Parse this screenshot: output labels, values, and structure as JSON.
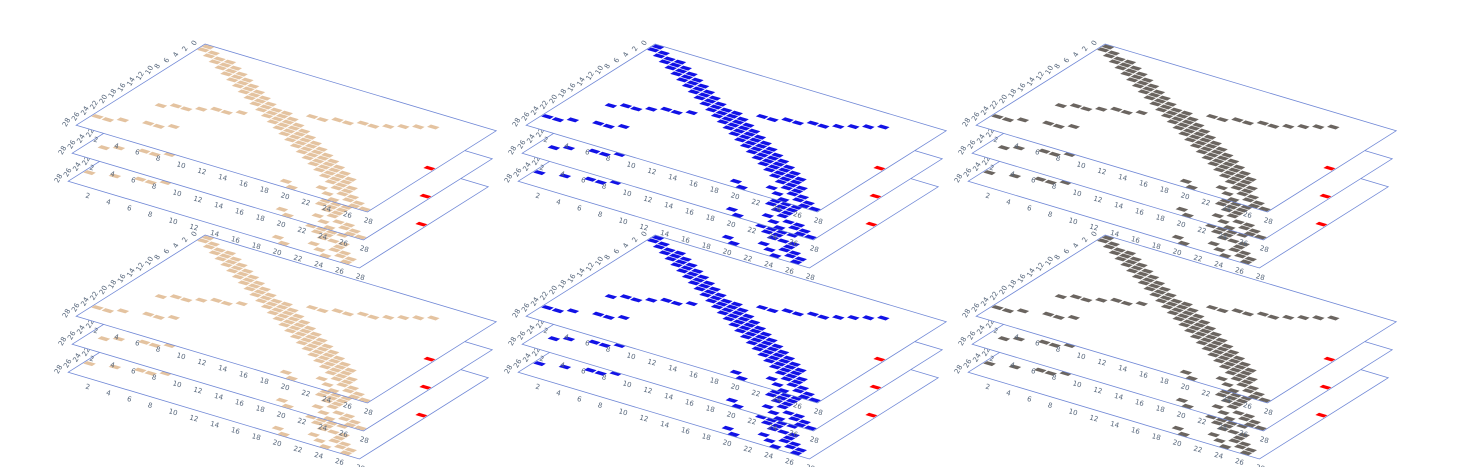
{
  "chart_data": {
    "type": "heatmap",
    "description_of_view": "six stacked 3D binary matrix panels (3 layers each), 28x28 grid",
    "x_ticks": [
      "2",
      "4",
      "6",
      "8",
      "10",
      "12",
      "14",
      "16",
      "18",
      "20",
      "22",
      "24",
      "26",
      "28"
    ],
    "y_ticks": [
      "0",
      "2",
      "4",
      "6",
      "8",
      "10",
      "12",
      "14",
      "16",
      "18",
      "20",
      "22",
      "24",
      "26",
      "28"
    ],
    "grid_size": 28,
    "marker_color": "#ff0000",
    "panels": [
      {
        "id": "p1",
        "color": "#e4c3a0",
        "layers": 3
      },
      {
        "id": "p2",
        "color": "#1212e6",
        "layers": 3
      },
      {
        "id": "p3",
        "color": "#6b6560",
        "layers": 3
      },
      {
        "id": "p4",
        "color": "#e4c3a0",
        "layers": 3
      },
      {
        "id": "p5",
        "color": "#1212e6",
        "layers": 3
      },
      {
        "id": "p6",
        "color": "#6b6560",
        "layers": 3
      }
    ],
    "cells": [
      [
        0,
        0
      ],
      [
        1,
        0
      ],
      [
        1,
        1
      ],
      [
        2,
        1
      ],
      [
        2,
        2
      ],
      [
        3,
        2
      ],
      [
        3,
        3
      ],
      [
        4,
        3
      ],
      [
        4,
        4
      ],
      [
        5,
        4
      ],
      [
        5,
        5
      ],
      [
        6,
        5
      ],
      [
        6,
        6
      ],
      [
        7,
        6
      ],
      [
        7,
        7
      ],
      [
        8,
        7
      ],
      [
        8,
        8
      ],
      [
        9,
        8
      ],
      [
        9,
        9
      ],
      [
        10,
        9
      ],
      [
        10,
        10
      ],
      [
        11,
        10
      ],
      [
        11,
        11
      ],
      [
        12,
        11
      ],
      [
        12,
        12
      ],
      [
        13,
        12
      ],
      [
        13,
        13
      ],
      [
        14,
        13
      ],
      [
        14,
        14
      ],
      [
        15,
        14
      ],
      [
        15,
        15
      ],
      [
        16,
        15
      ],
      [
        16,
        16
      ],
      [
        17,
        16
      ],
      [
        17,
        17
      ],
      [
        18,
        17
      ],
      [
        18,
        18
      ],
      [
        19,
        18
      ],
      [
        19,
        19
      ],
      [
        20,
        19
      ],
      [
        20,
        20
      ],
      [
        21,
        20
      ],
      [
        21,
        21
      ],
      [
        22,
        21
      ],
      [
        22,
        22
      ],
      [
        23,
        22
      ],
      [
        23,
        23
      ],
      [
        24,
        23
      ],
      [
        24,
        24
      ],
      [
        25,
        24
      ],
      [
        25,
        25
      ],
      [
        26,
        25
      ],
      [
        26,
        26
      ],
      [
        27,
        26
      ],
      [
        27,
        27
      ],
      [
        2,
        3
      ],
      [
        3,
        4
      ],
      [
        4,
        5
      ],
      [
        5,
        6
      ],
      [
        6,
        7
      ],
      [
        7,
        8
      ],
      [
        8,
        9
      ],
      [
        9,
        10
      ],
      [
        10,
        11
      ],
      [
        11,
        12
      ],
      [
        12,
        13
      ],
      [
        13,
        14
      ],
      [
        14,
        15
      ],
      [
        15,
        16
      ],
      [
        16,
        17
      ],
      [
        17,
        18
      ],
      [
        18,
        19
      ],
      [
        19,
        20
      ],
      [
        20,
        21
      ],
      [
        21,
        22
      ],
      [
        22,
        23
      ],
      [
        23,
        24
      ],
      [
        10,
        12
      ],
      [
        11,
        13
      ],
      [
        12,
        14
      ],
      [
        13,
        15
      ],
      [
        14,
        16
      ],
      [
        15,
        17
      ],
      [
        16,
        18
      ],
      [
        17,
        19
      ],
      [
        18,
        20
      ],
      [
        19,
        21
      ],
      [
        20,
        22
      ],
      [
        21,
        23
      ],
      [
        9,
        14
      ],
      [
        9,
        15
      ],
      [
        8,
        16
      ],
      [
        8,
        17
      ],
      [
        7,
        18
      ],
      [
        7,
        19
      ],
      [
        6,
        20
      ],
      [
        5,
        21
      ],
      [
        4,
        22
      ],
      [
        3,
        23
      ],
      [
        14,
        7
      ],
      [
        14,
        8
      ],
      [
        13,
        9
      ],
      [
        15,
        6
      ],
      [
        16,
        5
      ],
      [
        16,
        4
      ],
      [
        17,
        3
      ],
      [
        22,
        4
      ],
      [
        22,
        5
      ],
      [
        21,
        6
      ],
      [
        23,
        2
      ],
      [
        24,
        1
      ],
      [
        24,
        0
      ],
      [
        26,
        19
      ],
      [
        27,
        20
      ],
      [
        25,
        22
      ],
      [
        26,
        23
      ],
      [
        27,
        24
      ]
    ],
    "marker_cell": [
      27,
      27
    ]
  }
}
